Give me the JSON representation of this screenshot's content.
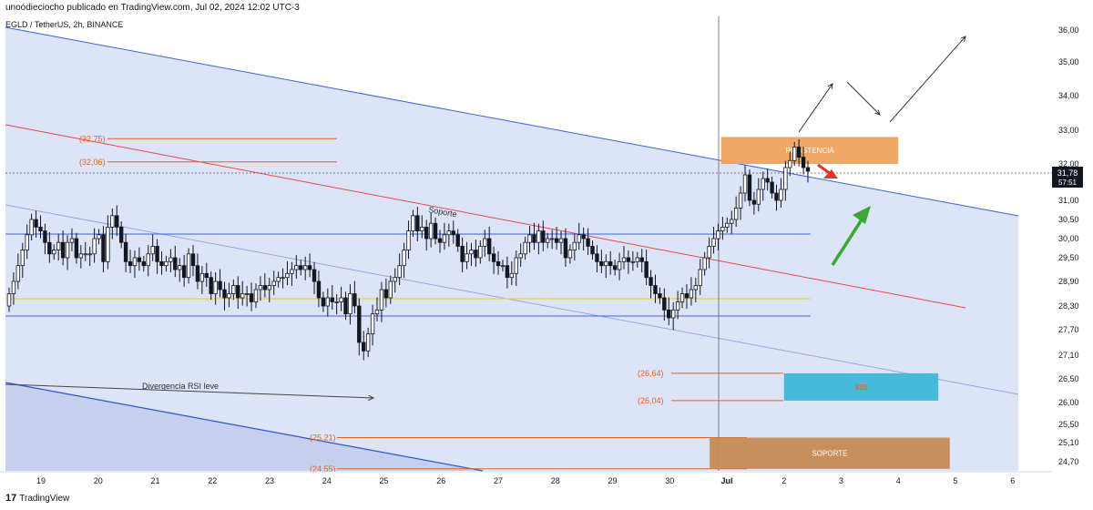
{
  "header": {
    "publisher": "unoódieciocho publicado en TradingView.com, Jul 02, 2024 12:02 UTC-3"
  },
  "symbol": {
    "label": "EGLD / TetherUS, 2h, BINANCE"
  },
  "footer": {
    "logo": "17",
    "brand": "TradingView"
  },
  "price_badge": {
    "price": "31,78",
    "countdown": "57:51"
  },
  "colors": {
    "up": "#ffffff",
    "down": "#131722",
    "channel": "#3a63d8",
    "resist": "#f0a35e",
    "support": "#c58a55",
    "sss": "#3db7d6",
    "red_line": "#e24a4a",
    "arrow_green": "#3aa832",
    "arrow_red": "#e5322d"
  },
  "chart_data": {
    "type": "candlestick",
    "title": "EGLD / TetherUS, 2h, BINANCE",
    "ylim": [
      24.45,
      36.3
    ],
    "y_ticks": [
      "36,00",
      "35,00",
      "34,00",
      "33,00",
      "32,00",
      "31,00",
      "30,50",
      "30,00",
      "29,50",
      "28,90",
      "28,30",
      "27,70",
      "27,10",
      "26,50",
      "26,00",
      "25,50",
      "25,10",
      "24,70"
    ],
    "x_ticks": [
      "19",
      "20",
      "21",
      "22",
      "23",
      "24",
      "25",
      "26",
      "27",
      "28",
      "29",
      "30",
      "Jul",
      "2",
      "3",
      "4",
      "5",
      "6"
    ],
    "levels": [
      {
        "label": "(32,75)",
        "value": 32.75
      },
      {
        "label": "(32,06)",
        "value": 32.06
      },
      {
        "label": "(26,64)",
        "value": 26.64
      },
      {
        "label": "(26,04)",
        "value": 26.04
      },
      {
        "label": "(25,21)",
        "value": 25.21
      },
      {
        "label": "(24,55)",
        "value": 24.55
      }
    ],
    "boxes": [
      {
        "label": "RESISTENCIA",
        "from_day": 30.9,
        "to_day": 34.0,
        "low": 32.0,
        "high": 32.8
      },
      {
        "label": "$$$",
        "from_day": 32.0,
        "to_day": 34.7,
        "low": 26.04,
        "high": 26.64
      },
      {
        "label": "SOPORTE",
        "from_day": 30.7,
        "to_day": 34.9,
        "low": 24.55,
        "high": 25.21
      }
    ],
    "annotations": [
      {
        "text": "Soporte"
      },
      {
        "text": "Divergencia RSI leve"
      }
    ],
    "horizontal_lines": [
      30.02,
      28.82,
      28.3
    ],
    "close_price": 31.78,
    "candles_close": [
      28.6,
      28.9,
      29.3,
      29.7,
      30.1,
      30.5,
      30.3,
      30.2,
      29.9,
      29.6,
      29.7,
      29.9,
      29.5,
      29.9,
      30.0,
      29.5,
      29.6,
      29.6,
      29.6,
      30.0,
      30.1,
      29.4,
      30.3,
      30.6,
      30.3,
      29.9,
      29.4,
      29.3,
      29.5,
      29.4,
      29.3,
      29.6,
      29.8,
      29.4,
      29.3,
      29.4,
      29.5,
      29.2,
      29.3,
      29.0,
      29.6,
      29.3,
      28.9,
      29.1,
      29.0,
      28.6,
      28.9,
      28.7,
      28.5,
      28.6,
      28.8,
      28.5,
      28.6,
      28.6,
      28.4,
      28.7,
      28.8,
      28.7,
      28.8,
      28.9,
      29.0,
      29.0,
      29.1,
      29.2,
      29.3,
      29.2,
      29.3,
      29.2,
      28.9,
      28.5,
      28.3,
      28.5,
      28.4,
      28.4,
      28.5,
      28.1,
      28.6,
      28.3,
      27.4,
      27.2,
      27.6,
      28.1,
      28.2,
      28.7,
      28.5,
      28.9,
      29.0,
      29.3,
      29.7,
      30.2,
      30.6,
      30.2,
      30.3,
      30.0,
      30.4,
      30.0,
      29.9,
      30.1,
      30.2,
      30.1,
      29.8,
      29.4,
      29.6,
      29.7,
      29.5,
      29.8,
      30.0,
      29.6,
      29.4,
      29.3,
      29.3,
      29.0,
      29.1,
      29.5,
      29.6,
      29.9,
      30.1,
      29.9,
      30.2,
      29.9,
      30.0,
      30.0,
      29.9,
      30.0,
      29.5,
      29.7,
      29.9,
      30.1,
      30.0,
      29.8,
      29.6,
      29.4,
      29.3,
      29.4,
      29.3,
      29.2,
      29.4,
      29.5,
      29.4,
      29.4,
      29.5,
      29.4,
      29.0,
      28.8,
      28.6,
      28.5,
      28.2,
      28.0,
      28.2,
      28.4,
      28.6,
      28.5,
      28.7,
      28.8,
      29.2,
      29.5,
      29.8,
      30.0,
      30.2,
      30.3,
      30.4,
      30.5,
      30.8,
      31.2,
      31.7,
      31.0,
      30.9,
      31.3,
      31.6,
      31.5,
      31.2,
      31.0,
      31.3,
      31.9,
      32.1,
      32.5,
      32.2,
      31.9,
      31.8
    ]
  }
}
